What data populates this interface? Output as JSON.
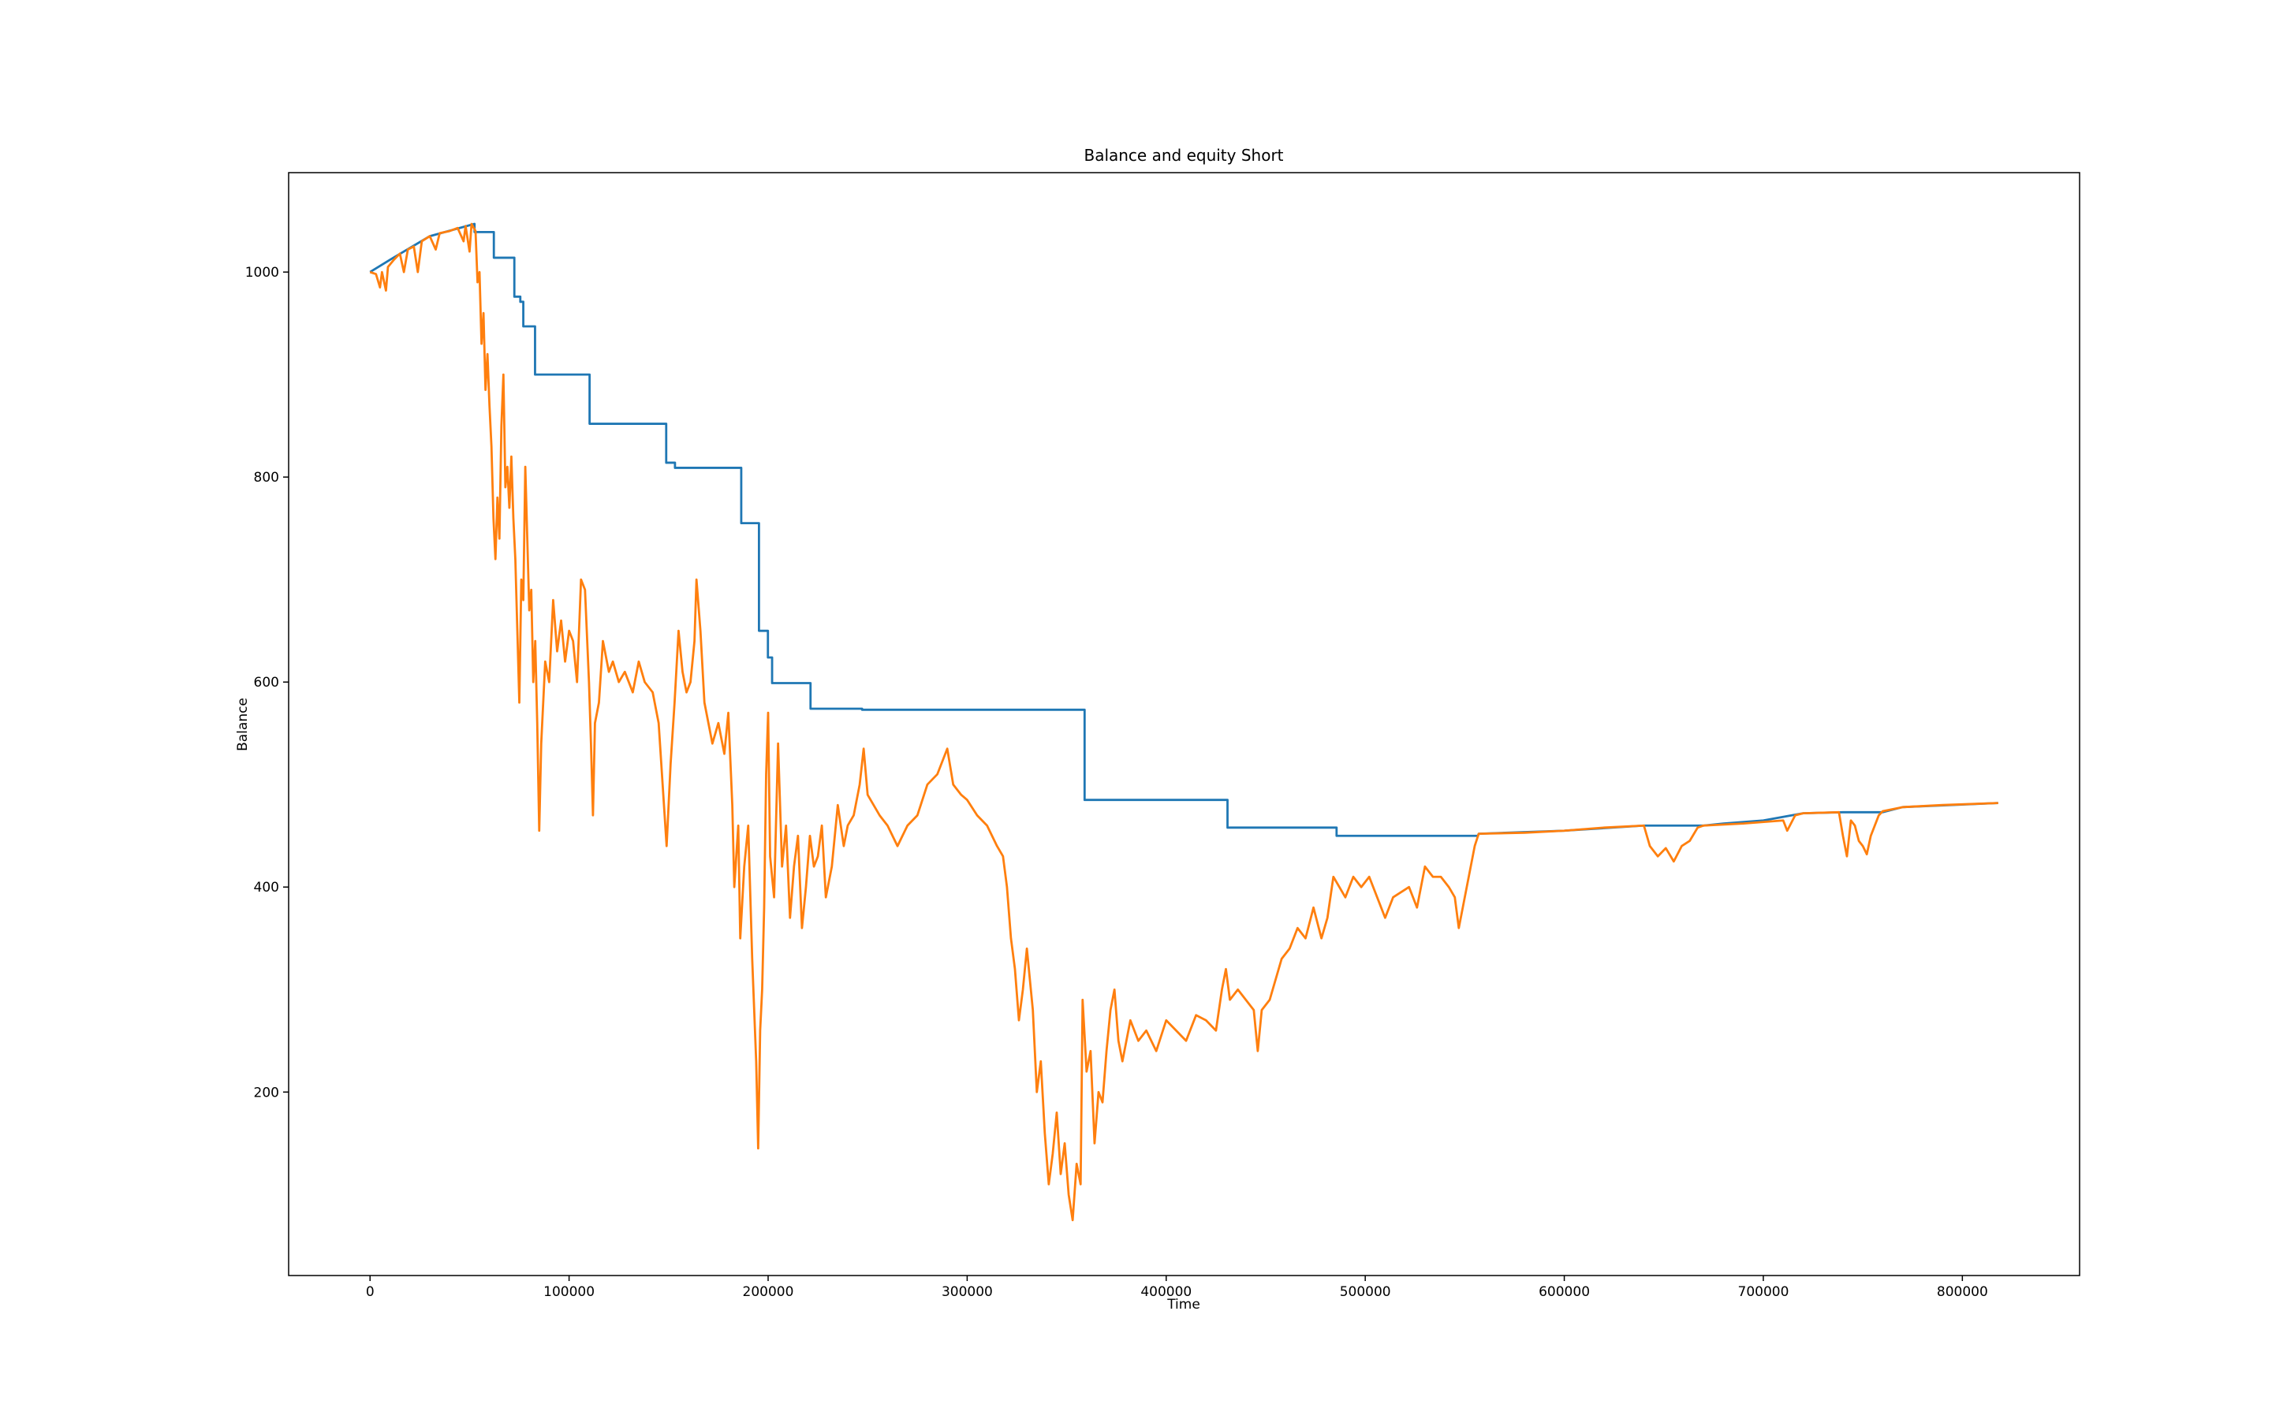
{
  "chart_data": {
    "type": "line",
    "title": "Balance and equity Short",
    "x_label": "Time",
    "y_label": "Balance",
    "xlim": [
      -40900,
      858900
    ],
    "ylim": [
      21,
      1097
    ],
    "xticks": [
      0,
      100000,
      200000,
      300000,
      400000,
      500000,
      600000,
      700000,
      800000
    ],
    "yticks": [
      200,
      400,
      600,
      800,
      1000
    ],
    "grid": false,
    "series": [
      {
        "color": "#1f77b4",
        "x": [
          0,
          10000,
          30000,
          52500,
          52500,
          62200,
          62200,
          72500,
          72500,
          75500,
          75500,
          77000,
          77000,
          82900,
          82900,
          110300,
          110300,
          148800,
          148800,
          153200,
          153200,
          186500,
          186500,
          195400,
          195400,
          199900,
          199900,
          202000,
          202000,
          221300,
          221300,
          247200,
          247200,
          359000,
          359000,
          430800,
          430800,
          485600,
          485600,
          556600,
          557000,
          600000,
          640000,
          670000,
          680000,
          700000,
          720000,
          740000,
          760000,
          770000,
          818000
        ],
        "values": [
          1000,
          1012,
          1035,
          1047,
          1039,
          1039,
          1014,
          1014,
          976,
          976,
          971,
          971,
          947,
          947,
          900,
          900,
          852,
          852,
          814,
          814,
          809,
          809,
          755,
          755,
          650,
          650,
          624,
          624,
          599,
          599,
          574,
          574,
          573,
          573,
          485,
          485,
          458,
          458,
          450,
          450,
          452,
          455,
          460,
          460,
          462,
          465,
          472,
          473,
          473,
          478,
          482
        ]
      },
      {
        "color": "#ff7f0e",
        "x": [
          0,
          3000,
          5000,
          6000,
          8000,
          9000,
          12000,
          15000,
          17000,
          19000,
          22000,
          24000,
          26000,
          30000,
          33000,
          35000,
          40000,
          44000,
          47000,
          48000,
          50000,
          51000,
          53000,
          54000,
          55000,
          56000,
          57000,
          58000,
          59000,
          60000,
          61000,
          62000,
          63000,
          64000,
          65000,
          66000,
          67000,
          68000,
          69000,
          70000,
          71000,
          72000,
          73000,
          74000,
          75000,
          76000,
          77000,
          78000,
          79000,
          80000,
          81000,
          82000,
          83000,
          84000,
          85000,
          86000,
          87000,
          88000,
          90000,
          92000,
          94000,
          96000,
          98000,
          100000,
          102000,
          104000,
          106000,
          108000,
          110000,
          111000,
          112000,
          113000,
          115000,
          117000,
          120000,
          122000,
          125000,
          128000,
          132000,
          135000,
          138000,
          142000,
          145000,
          147000,
          149000,
          151000,
          153000,
          155000,
          157000,
          159000,
          161000,
          163000,
          164000,
          166000,
          168000,
          170000,
          172000,
          175000,
          178000,
          180000,
          182000,
          183000,
          185000,
          186000,
          188000,
          190000,
          192000,
          194000,
          195000,
          196000,
          197000,
          198000,
          199000,
          200000,
          201000,
          203000,
          205000,
          207000,
          209000,
          211000,
          213000,
          215000,
          217000,
          219000,
          221000,
          223000,
          225000,
          227000,
          229000,
          232000,
          235000,
          238000,
          240000,
          243000,
          246000,
          248000,
          250000,
          253000,
          256000,
          260000,
          265000,
          270000,
          275000,
          280000,
          285000,
          290000,
          293000,
          297000,
          300000,
          305000,
          310000,
          315000,
          318000,
          320000,
          322000,
          324000,
          326000,
          328000,
          330000,
          333000,
          335000,
          337000,
          339000,
          341000,
          343000,
          345000,
          347000,
          349000,
          351000,
          353000,
          355000,
          357000,
          358000,
          360000,
          362000,
          364000,
          366000,
          368000,
          370000,
          372000,
          374000,
          376000,
          378000,
          382000,
          386000,
          390000,
          395000,
          400000,
          405000,
          410000,
          415000,
          420000,
          425000,
          428000,
          430000,
          432000,
          436000,
          440000,
          444000,
          446000,
          448000,
          452000,
          455000,
          458000,
          462000,
          466000,
          470000,
          474000,
          478000,
          481000,
          484000,
          487000,
          490000,
          494000,
          498000,
          502000,
          506000,
          510000,
          514000,
          518000,
          522000,
          526000,
          530000,
          534000,
          538000,
          542000,
          545000,
          547000,
          549000,
          551000,
          553000,
          555000,
          557000,
          580000,
          600000,
          620000,
          640000,
          643000,
          647000,
          651000,
          655000,
          659000,
          663000,
          667000,
          670000,
          690000,
          710000,
          712000,
          716000,
          720000,
          738000,
          740000,
          742000,
          744000,
          746000,
          748000,
          750000,
          752000,
          754000,
          756000,
          758000,
          760000,
          770000,
          790000,
          818000
        ],
        "values": [
          1000,
          998,
          985,
          1000,
          982,
          1005,
          1012,
          1018,
          1000,
          1022,
          1025,
          1000,
          1030,
          1035,
          1022,
          1038,
          1040,
          1043,
          1030,
          1045,
          1020,
          1047,
          1040,
          990,
          1000,
          930,
          960,
          885,
          920,
          870,
          830,
          760,
          720,
          780,
          740,
          850,
          900,
          790,
          810,
          770,
          820,
          760,
          720,
          650,
          580,
          700,
          680,
          810,
          740,
          670,
          690,
          600,
          640,
          560,
          455,
          540,
          580,
          620,
          600,
          680,
          630,
          660,
          620,
          650,
          640,
          600,
          700,
          690,
          600,
          540,
          470,
          560,
          580,
          640,
          610,
          620,
          600,
          610,
          590,
          620,
          600,
          590,
          560,
          500,
          440,
          520,
          580,
          650,
          610,
          590,
          600,
          640,
          700,
          650,
          580,
          560,
          540,
          560,
          530,
          570,
          480,
          400,
          460,
          350,
          420,
          460,
          330,
          230,
          145,
          260,
          300,
          380,
          510,
          570,
          430,
          390,
          540,
          420,
          460,
          370,
          420,
          450,
          360,
          400,
          450,
          420,
          430,
          460,
          390,
          420,
          480,
          440,
          460,
          470,
          500,
          535,
          490,
          480,
          470,
          460,
          440,
          460,
          470,
          500,
          510,
          535,
          500,
          490,
          485,
          470,
          460,
          440,
          430,
          400,
          350,
          320,
          270,
          300,
          340,
          280,
          200,
          230,
          160,
          110,
          140,
          180,
          120,
          150,
          100,
          75,
          130,
          110,
          290,
          220,
          240,
          150,
          200,
          190,
          240,
          280,
          300,
          250,
          230,
          270,
          250,
          260,
          240,
          270,
          260,
          250,
          275,
          270,
          260,
          300,
          320,
          290,
          300,
          290,
          280,
          240,
          280,
          290,
          310,
          330,
          340,
          360,
          350,
          380,
          350,
          370,
          410,
          400,
          390,
          410,
          400,
          410,
          390,
          370,
          390,
          395,
          400,
          380,
          420,
          410,
          410,
          400,
          390,
          360,
          380,
          400,
          420,
          440,
          452,
          453,
          455,
          458,
          460,
          440,
          430,
          438,
          425,
          440,
          445,
          458,
          460,
          462,
          465,
          455,
          470,
          472,
          473,
          450,
          430,
          465,
          460,
          445,
          440,
          432,
          450,
          460,
          470,
          474,
          478,
          480,
          482
        ]
      }
    ]
  }
}
